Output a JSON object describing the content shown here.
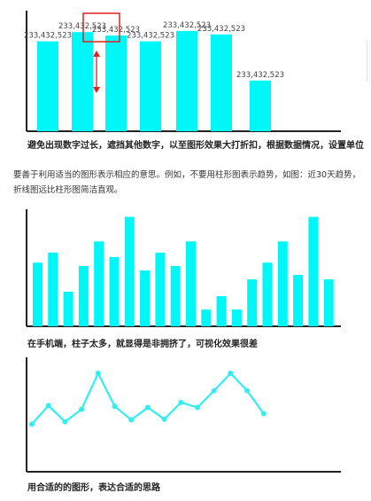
{
  "captions": {
    "c1": "避免出现数字过长，遮挡其他数字，以至图形效果大打折扣，根据数据情况，设置单位",
    "c2": "在手机端，柱子太多，就显得是非拥挤了，可视化效果很差",
    "c3": "用合适的的图形，表达合适的思路"
  },
  "paragraph": "要善于利用适当的图形表示相应的意思。例如，不要用柱形图表示趋势，如图：近30天趋势，折线图远比柱形图简洁直观。",
  "colors": {
    "bar": "#00f7f7",
    "line": "#33eeee",
    "highlight": "#e02020"
  },
  "chart_data": [
    {
      "type": "bar",
      "categories": [
        "",
        "",
        "",
        "",
        "",
        "",
        ""
      ],
      "values": [
        233432523,
        233432523,
        233432523,
        233432523,
        233432523,
        233432523,
        233432523
      ],
      "labels": [
        "233,432,523",
        "233,432,523",
        "233,432,523",
        "233,432,523",
        "233,432,523",
        "233,432,523",
        "233,432,523"
      ],
      "bar_levels": [
        0.78,
        0.86,
        0.83,
        0.78,
        0.87,
        0.84,
        0.44
      ],
      "title": "",
      "xlabel": "",
      "ylabel": "",
      "legend": "none",
      "grid": false
    },
    {
      "type": "bar",
      "categories": [
        "",
        "",
        "",
        "",
        "",
        "",
        "",
        "",
        "",
        "",
        "",
        "",
        "",
        "",
        "",
        "",
        "",
        "",
        "",
        "",
        ""
      ],
      "values": [
        57,
        66,
        31,
        54,
        76,
        62,
        98,
        50,
        66,
        54,
        76,
        15,
        27,
        15,
        42,
        57,
        76,
        46,
        98,
        42,
        0
      ],
      "ylim": [
        0,
        100
      ],
      "title": "",
      "xlabel": "",
      "ylabel": "",
      "legend": "none",
      "grid": false
    },
    {
      "type": "line",
      "x": [
        1,
        2,
        3,
        4,
        5,
        6,
        7,
        8,
        9,
        10,
        11,
        12,
        13,
        14,
        15,
        16,
        17
      ],
      "values": [
        18,
        48,
        22,
        42,
        100,
        47,
        25,
        45,
        26,
        53,
        45,
        72,
        100,
        72,
        35,
        0,
        0
      ],
      "ylim": [
        0,
        100
      ],
      "title": "",
      "xlabel": "",
      "ylabel": "",
      "legend": "none",
      "grid": false
    }
  ]
}
